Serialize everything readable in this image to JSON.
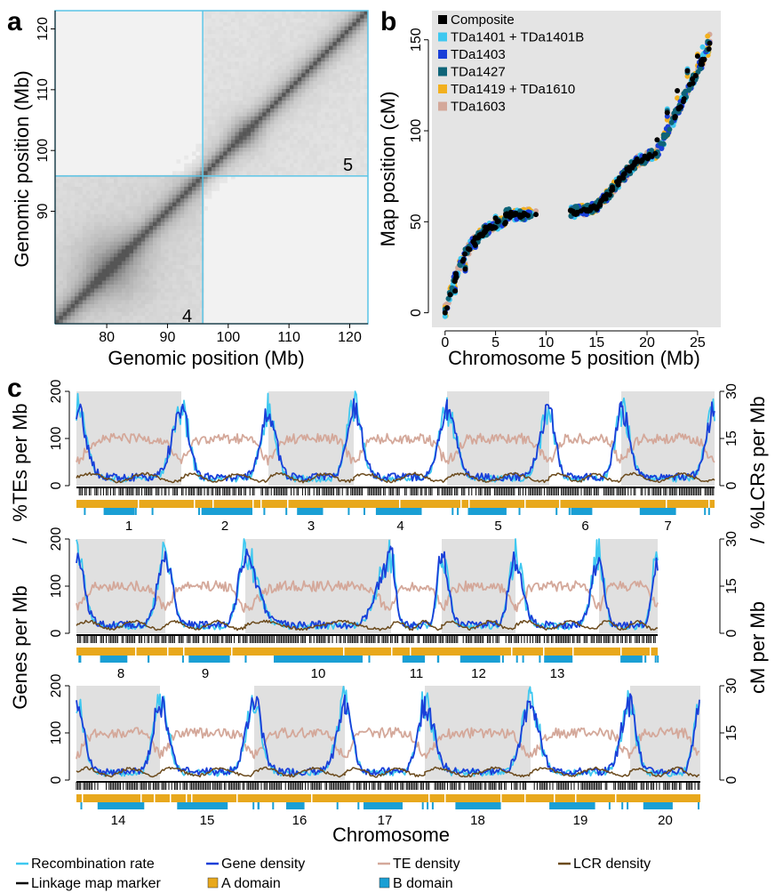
{
  "panels": {
    "a": {
      "letter": "a",
      "xlabel": "Genomic position (Mb)",
      "ylabel": "Genomic position (Mb)",
      "xticks": [
        "80",
        "90",
        "100",
        "110",
        "120"
      ],
      "yticks": [
        "90",
        "100",
        "110",
        "120"
      ],
      "chromosome_labels": [
        "4",
        "5"
      ],
      "colors": {
        "boundary": "#5bc4e6",
        "heatmap": "#6a6a6a"
      }
    },
    "b": {
      "letter": "b",
      "xlabel": "Chromosome 5 position (Mb)",
      "ylabel": "Map position (cM)",
      "legend": [
        "Composite",
        "TDa1401 + TDa1401B",
        "TDa1403",
        "TDa1427",
        "TDa1419 + TDa1610",
        "TDa1603"
      ],
      "colors": [
        "#000000",
        "#3ec8f0",
        "#1a3fd8",
        "#0f6478",
        "#f2b01e",
        "#d4a89a"
      ]
    },
    "c": {
      "letter": "c",
      "xlabel": "Chromosome",
      "ylabel_left_1": "Genes per Mb",
      "ylabel_left_sep": "/",
      "ylabel_left_2": "%TEs per Mb",
      "ylabel_right_1": "cM per Mb",
      "ylabel_right_sep": "/",
      "ylabel_right_2": "%LCRs per Mb",
      "rows": [
        {
          "chromosomes": [
            "1",
            "2",
            "3",
            "4",
            "5",
            "6",
            "7"
          ]
        },
        {
          "chromosomes": [
            "8",
            "9",
            "10",
            "11",
            "12",
            "13"
          ]
        },
        {
          "chromosomes": [
            "14",
            "15",
            "16",
            "17",
            "18",
            "19",
            "20"
          ]
        }
      ],
      "left_ticks": [
        "0",
        "100",
        "200"
      ],
      "right_ticks": [
        "0",
        "15",
        "30"
      ],
      "legend": [
        {
          "label": "Recombination rate",
          "color": "#3ec8f0",
          "kind": "line"
        },
        {
          "label": "Gene density",
          "color": "#1a3fd8",
          "kind": "line"
        },
        {
          "label": "TE density",
          "color": "#d4a89a",
          "kind": "line"
        },
        {
          "label": "LCR density",
          "color": "#6b4a1c",
          "kind": "line"
        },
        {
          "label": "Linkage map marker",
          "color": "#000000",
          "kind": "line"
        },
        {
          "label": "A domain",
          "color": "#e8a81c",
          "kind": "box"
        },
        {
          "label": "B domain",
          "color": "#1a9fd4",
          "kind": "box"
        }
      ]
    }
  },
  "chart_data": [
    {
      "type": "scatter",
      "title": "",
      "xlabel": "Chromosome 5 position (Mb)",
      "ylabel": "Map position (cM)",
      "xlim": [
        0,
        26.5
      ],
      "ylim": [
        -3,
        160
      ],
      "x_ticks": [
        0,
        5,
        10,
        15,
        20,
        25
      ],
      "y_ticks": [
        0,
        50,
        100,
        150
      ],
      "legend_position": "top-left",
      "series": [
        {
          "name": "Composite",
          "x": [
            0,
            1,
            2,
            3,
            4,
            5,
            6,
            7,
            8,
            9,
            12.5,
            14,
            15,
            16,
            17,
            18,
            19,
            20,
            21,
            22,
            23,
            24,
            25,
            26.2
          ],
          "y": [
            0,
            12,
            24,
            37,
            47,
            52,
            54,
            54,
            54,
            54,
            56,
            56,
            58,
            65,
            72,
            79,
            83,
            85,
            95,
            110,
            122,
            133,
            141,
            148
          ]
        },
        {
          "name": "TDa1401 + TDa1401B",
          "x": [
            0,
            1,
            2,
            3,
            4,
            5,
            6,
            7,
            8,
            12.5,
            14,
            16,
            18,
            20,
            22,
            24,
            25.5
          ],
          "y": [
            -2,
            11,
            25,
            38,
            47,
            53,
            54,
            54,
            54,
            58,
            56,
            64,
            79,
            86,
            112,
            134,
            146
          ]
        },
        {
          "name": "TDa1403",
          "x": [
            0,
            1,
            2,
            3,
            4,
            5,
            6,
            7,
            12.5,
            14,
            16,
            18,
            20,
            22,
            24,
            26
          ],
          "y": [
            1,
            13,
            23,
            36,
            48,
            52,
            54,
            54,
            53,
            54,
            63,
            78,
            84,
            108,
            133,
            148
          ]
        },
        {
          "name": "TDa1427",
          "x": [
            0,
            1,
            2,
            3,
            4,
            5,
            6,
            12.5,
            14,
            16,
            18,
            20,
            22,
            24,
            26
          ],
          "y": [
            2,
            12,
            25,
            37,
            47,
            52,
            54,
            57,
            57,
            66,
            80,
            86,
            111,
            132,
            149
          ]
        },
        {
          "name": "TDa1419 + TDa1610",
          "x": [
            0,
            1,
            2,
            3,
            4,
            5,
            12.5,
            14,
            16,
            18,
            20,
            22,
            23,
            24,
            25,
            26
          ],
          "y": [
            3,
            14,
            26,
            38,
            46,
            51,
            56,
            58,
            67,
            80,
            84,
            106,
            118,
            130,
            142,
            152
          ]
        },
        {
          "name": "TDa1603",
          "x": [
            0,
            1,
            2,
            3,
            4,
            5,
            6,
            9,
            12.5,
            14,
            16,
            18,
            20,
            22,
            24,
            26.2
          ],
          "y": [
            4,
            14,
            27,
            39,
            48,
            53,
            55,
            56,
            57,
            57,
            66,
            80,
            85,
            110,
            134,
            153
          ]
        }
      ]
    },
    {
      "type": "line",
      "title": "",
      "xlabel": "Chromosome",
      "ylabel": "Genes per Mb / %TEs per Mb",
      "ylabel_right": "cM per Mb / %LCRs per Mb",
      "ylim": [
        0,
        200
      ],
      "ylim_right": [
        0,
        30
      ],
      "categories": [
        "1",
        "2",
        "3",
        "4",
        "5",
        "6",
        "7",
        "8",
        "9",
        "10",
        "11",
        "12",
        "13",
        "14",
        "15",
        "16",
        "17",
        "18",
        "19",
        "20"
      ],
      "series": [
        {
          "name": "Recombination rate",
          "description": "peaks near chromosome ends"
        },
        {
          "name": "Gene density",
          "description": "peaks near chromosome ends"
        },
        {
          "name": "TE density",
          "description": "high in chromosome centers"
        },
        {
          "name": "LCR density",
          "description": "low throughout"
        }
      ]
    }
  ]
}
